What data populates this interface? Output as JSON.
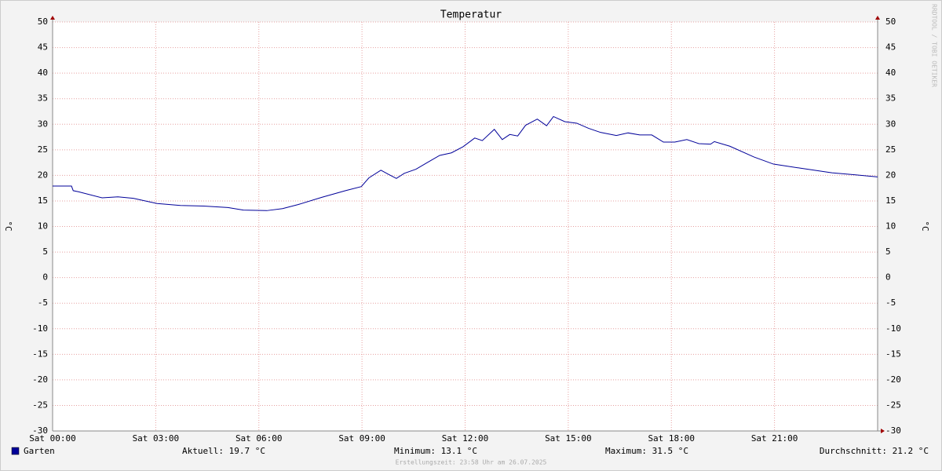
{
  "chart_data": {
    "type": "line",
    "title": "Temperatur",
    "y_label": "°C",
    "y2_label": "°C",
    "watermark": "RRDTOOL / TOBI OETIKER",
    "xlim": [
      0,
      24
    ],
    "ylim": [
      -30,
      50
    ],
    "xticks": [
      {
        "value": 0,
        "label": "Sat 00:00"
      },
      {
        "value": 3,
        "label": "Sat 03:00"
      },
      {
        "value": 6,
        "label": "Sat 06:00"
      },
      {
        "value": 9,
        "label": "Sat 09:00"
      },
      {
        "value": 12,
        "label": "Sat 12:00"
      },
      {
        "value": 15,
        "label": "Sat 15:00"
      },
      {
        "value": 18,
        "label": "Sat 18:00"
      },
      {
        "value": 21,
        "label": "Sat 21:00"
      }
    ],
    "yticks": [
      -30,
      -25,
      -20,
      -15,
      -10,
      -5,
      0,
      5,
      10,
      15,
      20,
      25,
      30,
      35,
      40,
      45,
      50
    ],
    "grid": true,
    "x": [
      0,
      0.55,
      0.6,
      0.75,
      1.44,
      1.9,
      2.35,
      3.04,
      3.72,
      4.4,
      5.1,
      5.55,
      6.23,
      6.69,
      7.15,
      7.83,
      8.52,
      8.98,
      9.2,
      9.55,
      9.77,
      10,
      10.23,
      10.57,
      10.9,
      11.26,
      11.6,
      11.94,
      12.28,
      12.5,
      12.85,
      13.08,
      13.3,
      13.53,
      13.76,
      14.1,
      14.37,
      14.57,
      14.9,
      15.25,
      15.59,
      15.94,
      16.4,
      16.74,
      17.08,
      17.43,
      17.77,
      18.1,
      18.45,
      18.8,
      19.14,
      19.25,
      19.7,
      20.4,
      20.97,
      21.76,
      22.67,
      23.36,
      24
    ],
    "series": [
      {
        "name": "Garten",
        "color": "#000099",
        "values": [
          17.9,
          17.9,
          17.0,
          16.8,
          15.6,
          15.8,
          15.5,
          14.5,
          14.1,
          14.0,
          13.7,
          13.2,
          13.1,
          13.5,
          14.3,
          15.7,
          17.0,
          17.8,
          19.5,
          21.0,
          20.2,
          19.4,
          20.4,
          21.2,
          22.5,
          23.9,
          24.4,
          25.6,
          27.3,
          26.8,
          29.0,
          27.0,
          28.0,
          27.7,
          29.8,
          31.0,
          29.7,
          31.5,
          30.5,
          30.2,
          29.2,
          28.4,
          27.8,
          28.3,
          27.9,
          27.9,
          26.5,
          26.5,
          27.0,
          26.2,
          26.1,
          26.6,
          25.7,
          23.6,
          22.2,
          21.4,
          20.5,
          20.1,
          19.7
        ]
      }
    ],
    "stats": [
      "Aktuell: 19.7 °C",
      "Minimum: 13.1 °C",
      "Maximum: 31.5 °C",
      "Durchschnitt: 21.2 °C"
    ],
    "footer": "Erstellungszeit: 23:58 Uhr am 26.07.2025"
  }
}
